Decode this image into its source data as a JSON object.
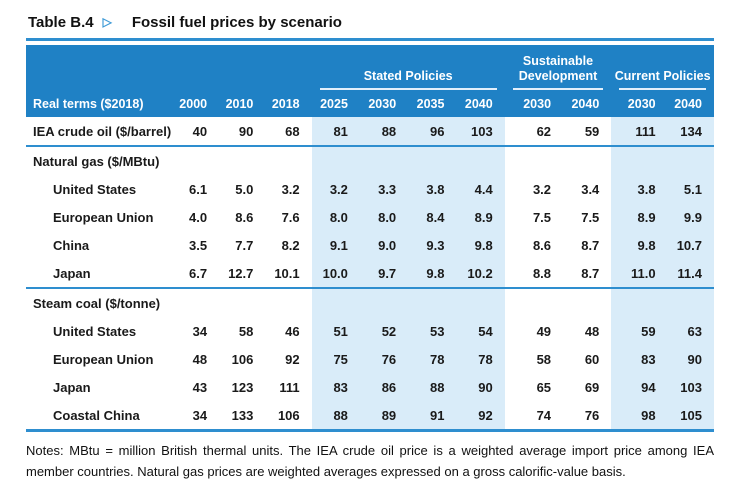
{
  "title": {
    "label": "Table B.4",
    "marker": "▷",
    "text": "Fossil fuel prices by scenario"
  },
  "colors": {
    "header_blue": "#1f81c5",
    "band_light_blue": "#d9ecf9",
    "rule_blue": "#2e8ecf",
    "marker_blue": "#3f9ad6"
  },
  "table": {
    "corner_label": "Real terms ($2018)",
    "groups": [
      {
        "label": "Stated Policies",
        "span": 4
      },
      {
        "label": "Sustainable Development",
        "span": 2
      },
      {
        "label": "Current Policies",
        "span": 2
      }
    ],
    "years": [
      "2000",
      "2010",
      "2018",
      "2025",
      "2030",
      "2035",
      "2040",
      "2030",
      "2040",
      "2030",
      "2040"
    ],
    "rows": [
      {
        "type": "data",
        "label": "IEA crude oil ($/barrel)",
        "strong": true,
        "indent": false,
        "values": [
          "40",
          "90",
          "68",
          "81",
          "88",
          "96",
          "103",
          "62",
          "59",
          "111",
          "134"
        ]
      },
      {
        "type": "section",
        "label": "Natural gas ($/MBtu)"
      },
      {
        "type": "data",
        "label": "United States",
        "indent": true,
        "values": [
          "6.1",
          "5.0",
          "3.2",
          "3.2",
          "3.3",
          "3.8",
          "4.4",
          "3.2",
          "3.4",
          "3.8",
          "5.1"
        ]
      },
      {
        "type": "data",
        "label": "European Union",
        "indent": true,
        "values": [
          "4.0",
          "8.6",
          "7.6",
          "8.0",
          "8.0",
          "8.4",
          "8.9",
          "7.5",
          "7.5",
          "8.9",
          "9.9"
        ]
      },
      {
        "type": "data",
        "label": "China",
        "indent": true,
        "values": [
          "3.5",
          "7.7",
          "8.2",
          "9.1",
          "9.0",
          "9.3",
          "9.8",
          "8.6",
          "8.7",
          "9.8",
          "10.7"
        ]
      },
      {
        "type": "data",
        "label": "Japan",
        "indent": true,
        "values": [
          "6.7",
          "12.7",
          "10.1",
          "10.0",
          "9.7",
          "9.8",
          "10.2",
          "8.8",
          "8.7",
          "11.0",
          "11.4"
        ]
      },
      {
        "type": "section",
        "label": "Steam coal ($/tonne)"
      },
      {
        "type": "data",
        "label": "United States",
        "indent": true,
        "values": [
          "34",
          "58",
          "46",
          "51",
          "52",
          "53",
          "54",
          "49",
          "48",
          "59",
          "63"
        ]
      },
      {
        "type": "data",
        "label": "European Union",
        "indent": true,
        "values": [
          "48",
          "106",
          "92",
          "75",
          "76",
          "78",
          "78",
          "58",
          "60",
          "83",
          "90"
        ]
      },
      {
        "type": "data",
        "label": "Japan",
        "indent": true,
        "values": [
          "43",
          "123",
          "111",
          "83",
          "86",
          "88",
          "90",
          "65",
          "69",
          "94",
          "103"
        ]
      },
      {
        "type": "data",
        "label": "Coastal China",
        "indent": true,
        "values": [
          "34",
          "133",
          "106",
          "88",
          "89",
          "91",
          "92",
          "74",
          "76",
          "98",
          "105"
        ]
      }
    ]
  },
  "notes": "Notes: MBtu = million British thermal units. The IEA crude oil price is a weighted average import price among IEA member countries. Natural gas prices are weighted averages expressed on a gross calorific-value basis."
}
